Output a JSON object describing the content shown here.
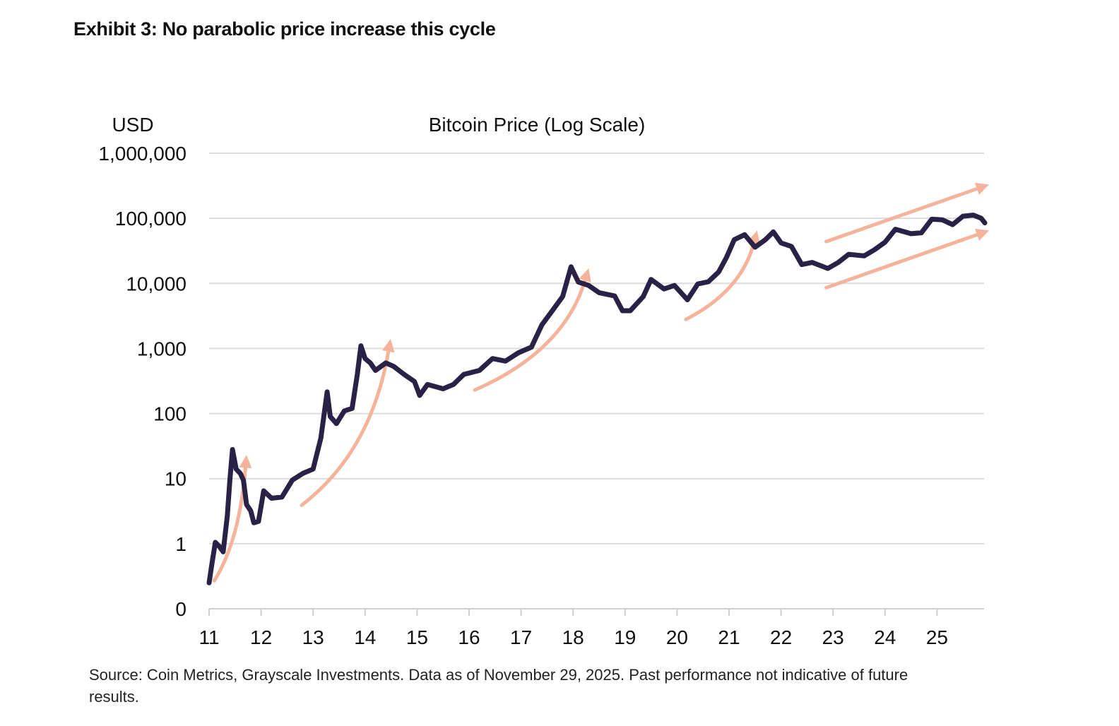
{
  "title": "Exhibit 3: No parabolic price increase this cycle",
  "source": "Source: Coin Metrics, Grayscale Investments. Data as of November 29, 2025. Past performance not indicative of future results.",
  "chart_data": {
    "type": "line",
    "title": "Bitcoin Price (Log Scale)",
    "ylabel": "USD",
    "xlabel": "",
    "yscale": "log",
    "ylim": [
      0.1,
      1000000
    ],
    "xlim": [
      2011,
      2025.92
    ],
    "yticks": [
      {
        "value": 1000000,
        "label": "1,000,000"
      },
      {
        "value": 100000,
        "label": "100,000"
      },
      {
        "value": 10000,
        "label": "10,000"
      },
      {
        "value": 1000,
        "label": "1,000"
      },
      {
        "value": 100,
        "label": "100"
      },
      {
        "value": 10,
        "label": "10"
      },
      {
        "value": 1,
        "label": "1"
      },
      {
        "value": 0.1,
        "label": "0"
      }
    ],
    "xticks": [
      {
        "value": 2011,
        "label": "11"
      },
      {
        "value": 2012,
        "label": "12"
      },
      {
        "value": 2013,
        "label": "13"
      },
      {
        "value": 2014,
        "label": "14"
      },
      {
        "value": 2015,
        "label": "15"
      },
      {
        "value": 2016,
        "label": "16"
      },
      {
        "value": 2017,
        "label": "17"
      },
      {
        "value": 2018,
        "label": "18"
      },
      {
        "value": 2019,
        "label": "19"
      },
      {
        "value": 2020,
        "label": "20"
      },
      {
        "value": 2021,
        "label": "21"
      },
      {
        "value": 2022,
        "label": "22"
      },
      {
        "value": 2023,
        "label": "23"
      },
      {
        "value": 2024,
        "label": "24"
      },
      {
        "value": 2025,
        "label": "25"
      }
    ],
    "grid": true,
    "series": [
      {
        "name": "Bitcoin Price",
        "color": "#2a2146",
        "points": [
          [
            2011.0,
            0.25
          ],
          [
            2011.05,
            0.47
          ],
          [
            2011.12,
            1.05
          ],
          [
            2011.2,
            0.9
          ],
          [
            2011.27,
            0.75
          ],
          [
            2011.35,
            2.7
          ],
          [
            2011.4,
            9.5
          ],
          [
            2011.45,
            28
          ],
          [
            2011.52,
            14
          ],
          [
            2011.6,
            12
          ],
          [
            2011.66,
            9.5
          ],
          [
            2011.72,
            4
          ],
          [
            2011.8,
            3.2
          ],
          [
            2011.86,
            2.1
          ],
          [
            2011.95,
            2.2
          ],
          [
            2012.05,
            6.5
          ],
          [
            2012.2,
            5
          ],
          [
            2012.4,
            5.2
          ],
          [
            2012.6,
            9.5
          ],
          [
            2012.8,
            12
          ],
          [
            2013.0,
            14
          ],
          [
            2013.15,
            42
          ],
          [
            2013.27,
            215
          ],
          [
            2013.33,
            90
          ],
          [
            2013.45,
            70
          ],
          [
            2013.6,
            110
          ],
          [
            2013.75,
            120
          ],
          [
            2013.85,
            400
          ],
          [
            2013.92,
            1100
          ],
          [
            2014.0,
            700
          ],
          [
            2014.1,
            600
          ],
          [
            2014.2,
            460
          ],
          [
            2014.4,
            600
          ],
          [
            2014.55,
            530
          ],
          [
            2014.75,
            400
          ],
          [
            2014.95,
            310
          ],
          [
            2015.05,
            190
          ],
          [
            2015.2,
            280
          ],
          [
            2015.5,
            240
          ],
          [
            2015.7,
            280
          ],
          [
            2015.9,
            400
          ],
          [
            2016.2,
            460
          ],
          [
            2016.45,
            700
          ],
          [
            2016.7,
            640
          ],
          [
            2016.95,
            860
          ],
          [
            2017.2,
            1050
          ],
          [
            2017.4,
            2300
          ],
          [
            2017.6,
            3800
          ],
          [
            2017.8,
            6300
          ],
          [
            2017.96,
            18000
          ],
          [
            2018.1,
            10500
          ],
          [
            2018.3,
            9300
          ],
          [
            2018.5,
            7200
          ],
          [
            2018.8,
            6400
          ],
          [
            2018.95,
            3800
          ],
          [
            2019.1,
            3800
          ],
          [
            2019.35,
            6300
          ],
          [
            2019.5,
            11500
          ],
          [
            2019.75,
            8200
          ],
          [
            2019.95,
            9300
          ],
          [
            2020.2,
            5600
          ],
          [
            2020.4,
            9800
          ],
          [
            2020.6,
            10600
          ],
          [
            2020.8,
            15000
          ],
          [
            2020.95,
            25000
          ],
          [
            2021.1,
            47000
          ],
          [
            2021.3,
            56000
          ],
          [
            2021.5,
            36000
          ],
          [
            2021.7,
            47000
          ],
          [
            2021.85,
            62000
          ],
          [
            2022.0,
            42000
          ],
          [
            2022.2,
            37000
          ],
          [
            2022.4,
            19500
          ],
          [
            2022.6,
            21000
          ],
          [
            2022.9,
            17000
          ],
          [
            2023.1,
            21000
          ],
          [
            2023.3,
            28000
          ],
          [
            2023.6,
            26500
          ],
          [
            2023.8,
            33000
          ],
          [
            2024.0,
            43000
          ],
          [
            2024.2,
            68000
          ],
          [
            2024.5,
            58000
          ],
          [
            2024.7,
            60000
          ],
          [
            2024.9,
            97000
          ],
          [
            2025.1,
            95000
          ],
          [
            2025.3,
            80000
          ],
          [
            2025.5,
            108000
          ],
          [
            2025.7,
            112000
          ],
          [
            2025.85,
            100000
          ],
          [
            2025.92,
            85000
          ]
        ]
      }
    ],
    "annotations": {
      "color": "#f4b39a",
      "trend_arrows": [
        {
          "start": [
            2011.1,
            0.27
          ],
          "end": [
            2011.72,
            23
          ],
          "curved": true
        },
        {
          "start": [
            2012.78,
            3.9
          ],
          "end": [
            2014.49,
            1400
          ],
          "curved": true
        },
        {
          "start": [
            2016.11,
            230
          ],
          "end": [
            2018.3,
            17000
          ],
          "curved": true
        },
        {
          "start": [
            2020.17,
            2800
          ],
          "end": [
            2021.54,
            65000
          ],
          "curved": true
        },
        {
          "start": [
            2022.87,
            44000
          ],
          "end": [
            2026.0,
            330000
          ],
          "curved": false
        },
        {
          "start": [
            2022.87,
            8600
          ],
          "end": [
            2026.0,
            65000
          ],
          "curved": false
        }
      ]
    }
  }
}
